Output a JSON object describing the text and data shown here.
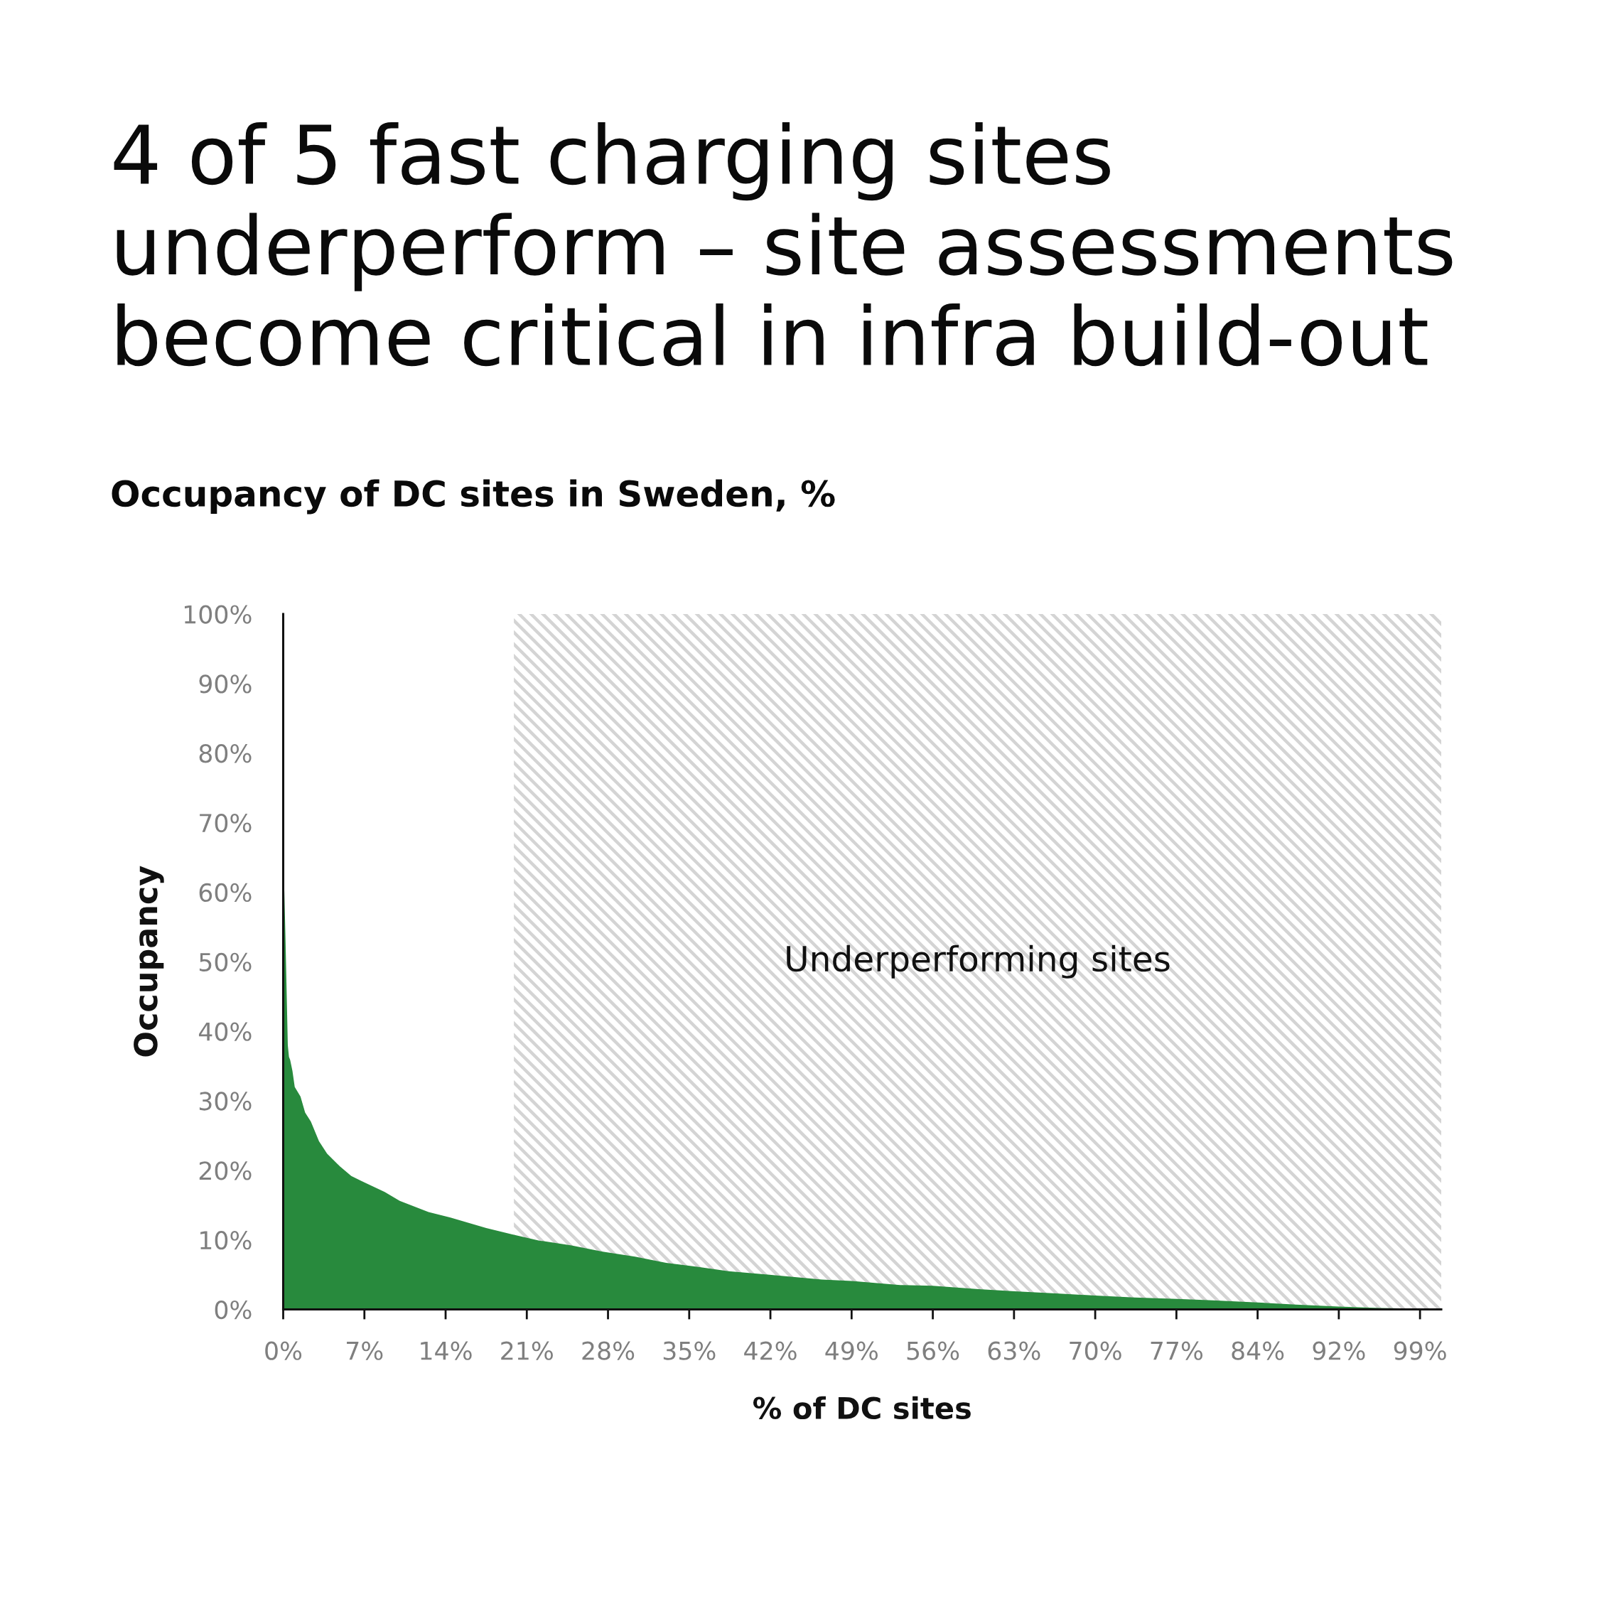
{
  "chart_data": {
    "type": "area",
    "title": "4 of 5 fast charging sites\nunderperform – site assessments\nbecome critical in infra build-out",
    "subtitle": "Occupancy of DC sites in Sweden, %",
    "xlabel": "% of DC sites",
    "ylabel": "Occupancy",
    "x": [
      0,
      0.1,
      0.2,
      0.4,
      0.5,
      0.6,
      0.8,
      1.0,
      1.5,
      1.9,
      2.4,
      3.1,
      3.8,
      4.9,
      5.9,
      7.0,
      8.8,
      10.1,
      12.6,
      14.5,
      17.6,
      19.8,
      22.2,
      25.0,
      27.7,
      30.5,
      33.2,
      36.0,
      38.6,
      42.0,
      46.7,
      49.3,
      53.5,
      56.3,
      60.3,
      63.4,
      67.0,
      70.4,
      73.8,
      77.5,
      80.6,
      84.5,
      87.8,
      91.5,
      95.1,
      98.6,
      99.7
    ],
    "values": [
      66.6,
      60.0,
      53.2,
      38.0,
      36.3,
      35.9,
      34.3,
      32.0,
      30.6,
      28.3,
      27.0,
      24.2,
      22.4,
      20.6,
      19.2,
      18.3,
      16.9,
      15.6,
      14.0,
      13.2,
      11.7,
      10.8,
      9.9,
      9.2,
      8.3,
      7.6,
      6.7,
      6.1,
      5.5,
      5.0,
      4.3,
      4.1,
      3.5,
      3.4,
      2.9,
      2.6,
      2.3,
      2.0,
      1.7,
      1.5,
      1.3,
      1.0,
      0.7,
      0.4,
      0.2,
      0.1,
      0
    ],
    "color": "#288a3d",
    "xlim": [
      0,
      100.4
    ],
    "ylim": [
      0,
      100
    ],
    "xticks": [
      {
        "value": 0,
        "label": "0%"
      },
      {
        "value": 7.04,
        "label": "7%"
      },
      {
        "value": 14.08,
        "label": "14%"
      },
      {
        "value": 21.12,
        "label": "21%"
      },
      {
        "value": 28.16,
        "label": "28%"
      },
      {
        "value": 35.2,
        "label": "35%"
      },
      {
        "value": 42.24,
        "label": "42%"
      },
      {
        "value": 49.28,
        "label": "49%"
      },
      {
        "value": 56.32,
        "label": "56%"
      },
      {
        "value": 63.36,
        "label": "63%"
      },
      {
        "value": 70.4,
        "label": "70%"
      },
      {
        "value": 77.44,
        "label": "77%"
      },
      {
        "value": 84.48,
        "label": "84%"
      },
      {
        "value": 91.52,
        "label": "92%"
      },
      {
        "value": 98.56,
        "label": "99%"
      }
    ],
    "yticks": [
      {
        "value": 0,
        "label": "0%"
      },
      {
        "value": 10,
        "label": "10%"
      },
      {
        "value": 20,
        "label": "20%"
      },
      {
        "value": 30,
        "label": "30%"
      },
      {
        "value": 40,
        "label": "40%"
      },
      {
        "value": 50,
        "label": "50%"
      },
      {
        "value": 60,
        "label": "60%"
      },
      {
        "value": 70,
        "label": "70%"
      },
      {
        "value": 80,
        "label": "80%"
      },
      {
        "value": 90,
        "label": "90%"
      },
      {
        "value": 100,
        "label": "100%"
      }
    ],
    "bands": [
      {
        "axis": "x",
        "from": 20,
        "to": 100.4,
        "label": "Underperforming sites",
        "color": "#d4d4d4"
      }
    ]
  }
}
